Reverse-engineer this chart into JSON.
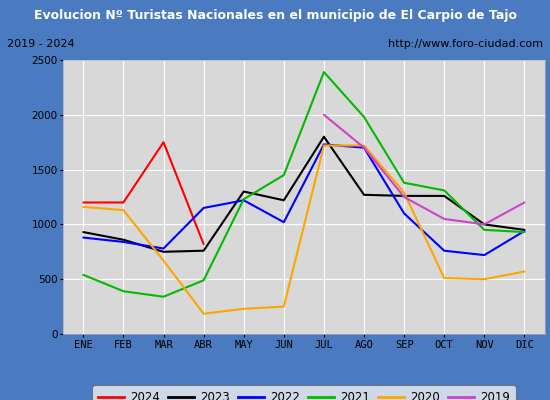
{
  "title": "Evolucion Nº Turistas Nacionales en el municipio de El Carpio de Tajo",
  "subtitle_left": "2019 - 2024",
  "subtitle_right": "http://www.foro-ciudad.com",
  "months": [
    "ENE",
    "FEB",
    "MAR",
    "ABR",
    "MAY",
    "JUN",
    "JUL",
    "AGO",
    "SEP",
    "OCT",
    "NOV",
    "DIC"
  ],
  "ylim": [
    0,
    2500
  ],
  "yticks": [
    0,
    500,
    1000,
    1500,
    2000,
    2500
  ],
  "series": {
    "2024": {
      "color": "#ff0000",
      "values": [
        1200,
        1200,
        1750,
        820,
        null,
        null,
        null,
        null,
        null,
        null,
        null,
        null
      ]
    },
    "2023": {
      "color": "#000000",
      "values": [
        930,
        860,
        750,
        760,
        1300,
        1220,
        1800,
        1270,
        1260,
        1260,
        1000,
        950
      ]
    },
    "2022": {
      "color": "#0000ff",
      "values": [
        880,
        840,
        780,
        1150,
        1220,
        1020,
        1730,
        1700,
        1100,
        760,
        720,
        940
      ]
    },
    "2021": {
      "color": "#00bb00",
      "values": [
        540,
        390,
        340,
        490,
        1230,
        1450,
        2390,
        1980,
        1380,
        1310,
        950,
        930
      ]
    },
    "2020": {
      "color": "#ffa500",
      "values": [
        1160,
        1130,
        670,
        185,
        230,
        250,
        1720,
        1720,
        1290,
        510,
        500,
        570
      ]
    },
    "2019": {
      "color": "#cc44cc",
      "values": [
        null,
        null,
        null,
        null,
        null,
        null,
        2000,
        1700,
        1250,
        1050,
        1000,
        1200
      ]
    }
  },
  "title_bg_color": "#4a7abf",
  "title_text_color": "#ffffff",
  "subtitle_bg_color": "#e8e8e8",
  "subtitle_text_color": "#000000",
  "plot_bg_color": "#d8d8d8",
  "grid_color": "#ffffff",
  "outer_bg_color": "#4a7abf",
  "legend_order": [
    "2024",
    "2023",
    "2022",
    "2021",
    "2020",
    "2019"
  ],
  "figsize": [
    5.5,
    4.0
  ],
  "dpi": 100
}
